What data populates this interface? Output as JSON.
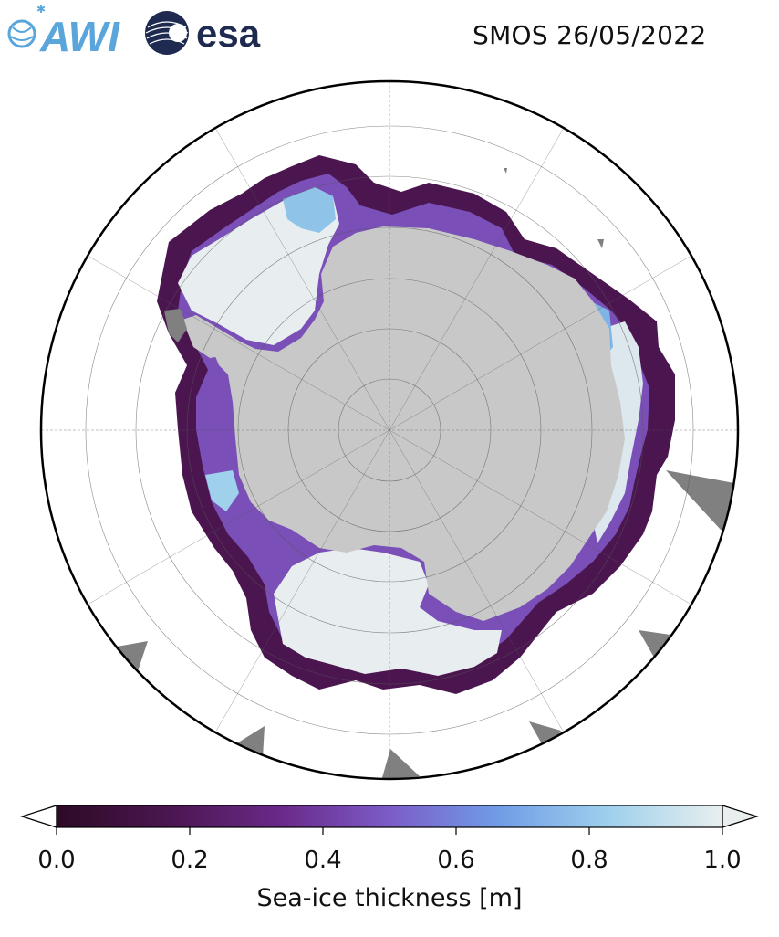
{
  "logos": {
    "awi": {
      "text": "AWI",
      "color": "#5aa6db"
    },
    "esa": {
      "text": "esa",
      "color": "#1e2a4f"
    }
  },
  "title": "SMOS 26/05/2022",
  "map": {
    "projection": "south-polar-stereographic",
    "land_color": "#c8c8c8",
    "missing_color": "#808080",
    "ocean_color": "#ffffff"
  },
  "colorbar": {
    "label": "Sea-ice thickness [m]",
    "ticks": [
      "0.0",
      "0.2",
      "0.4",
      "0.6",
      "0.8",
      "1.0"
    ],
    "min": 0.0,
    "max": 1.0,
    "extend": "both",
    "colormap": [
      "#2d0a26",
      "#4b1650",
      "#6a2a8a",
      "#7c5cc8",
      "#6f9be6",
      "#9fd0ec",
      "#e9efef"
    ]
  }
}
